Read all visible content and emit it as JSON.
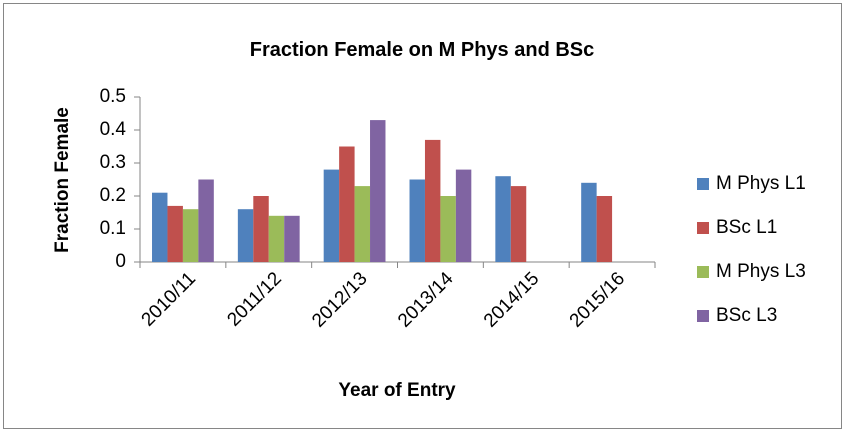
{
  "chart_data": {
    "type": "bar",
    "title": "Fraction Female on M Phys and BSc",
    "x_label": "Year of Entry",
    "y_label": "Fraction Female",
    "categories": [
      "2010/11",
      "2011/12",
      "2012/13",
      "2013/14",
      "2014/15",
      "2015/16"
    ],
    "series": [
      {
        "name": "M Phys L1",
        "color": "#4f81bd",
        "values": [
          0.21,
          0.16,
          0.28,
          0.25,
          0.26,
          0.24
        ]
      },
      {
        "name": "BSc L1",
        "color": "#c0504d",
        "values": [
          0.17,
          0.2,
          0.35,
          0.37,
          0.23,
          0.2
        ]
      },
      {
        "name": "M Phys L3",
        "color": "#9bbb59",
        "values": [
          0.16,
          0.14,
          0.23,
          0.2,
          null,
          null
        ]
      },
      {
        "name": "BSc L3",
        "color": "#8064a2",
        "values": [
          0.25,
          0.14,
          0.43,
          0.28,
          null,
          null
        ]
      }
    ],
    "ylim": [
      0,
      0.5
    ],
    "yticks": [
      0,
      0.1,
      0.2,
      0.3,
      0.4,
      0.5
    ],
    "grid": false,
    "legend": "right"
  }
}
